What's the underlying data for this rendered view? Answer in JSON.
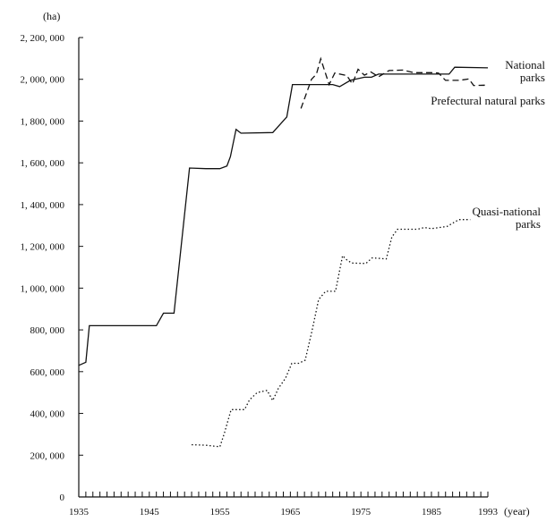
{
  "chart_data": {
    "type": "line",
    "title": "",
    "y_unit_label": "(ha)",
    "x_unit_label": "(year)",
    "xlim": [
      1935,
      1993
    ],
    "ylim": [
      0,
      2200000
    ],
    "grid": false,
    "legend": "inline labels near line ends",
    "x_tick_labels": [
      {
        "value": 1935,
        "label": "1935"
      },
      {
        "value": 1945,
        "label": "1945"
      },
      {
        "value": 1955,
        "label": "1955"
      },
      {
        "value": 1965,
        "label": "1965"
      },
      {
        "value": 1975,
        "label": "1975"
      },
      {
        "value": 1985,
        "label": "1985"
      },
      {
        "value": 1993,
        "label": "1993"
      }
    ],
    "y_tick_labels": [
      {
        "value": 0,
        "label": "0"
      },
      {
        "value": 200000,
        "label": "200, 000"
      },
      {
        "value": 400000,
        "label": "400, 000"
      },
      {
        "value": 600000,
        "label": "600, 000"
      },
      {
        "value": 800000,
        "label": "800, 000"
      },
      {
        "value": 1000000,
        "label": "1, 000, 000"
      },
      {
        "value": 1200000,
        "label": "1, 200, 000"
      },
      {
        "value": 1400000,
        "label": "1, 400, 000"
      },
      {
        "value": 1600000,
        "label": "1, 600, 000"
      },
      {
        "value": 1800000,
        "label": "1, 800, 000"
      },
      {
        "value": 2000000,
        "label": "2, 000, 000"
      },
      {
        "value": 2200000,
        "label": "2, 200, 000"
      }
    ],
    "series": [
      {
        "name_lines": [
          "National",
          "parks"
        ],
        "style": "solid",
        "color": "#111111",
        "points": [
          [
            1935,
            630000
          ],
          [
            1936,
            645000
          ],
          [
            1936.5,
            820000
          ],
          [
            1946,
            820000
          ],
          [
            1947,
            880000
          ],
          [
            1948.5,
            880000
          ],
          [
            1950.7,
            1575000
          ],
          [
            1953,
            1572000
          ],
          [
            1955,
            1572000
          ],
          [
            1956,
            1585000
          ],
          [
            1956.5,
            1630000
          ],
          [
            1957.3,
            1760000
          ],
          [
            1958,
            1742000
          ],
          [
            1962.5,
            1745000
          ],
          [
            1964.5,
            1820000
          ],
          [
            1965.3,
            1975000
          ],
          [
            1971,
            1975000
          ],
          [
            1972,
            1965000
          ],
          [
            1973.5,
            1995000
          ],
          [
            1975.5,
            2010000
          ],
          [
            1976.5,
            2010000
          ],
          [
            1977.5,
            2025000
          ],
          [
            1986,
            2025000
          ],
          [
            1987.5,
            2025000
          ],
          [
            1988.3,
            2058000
          ],
          [
            1993,
            2055000
          ]
        ]
      },
      {
        "name_lines": [
          "Prefectural natural parks"
        ],
        "style": "dashed",
        "color": "#111111",
        "points": [
          [
            1966.5,
            1860000
          ],
          [
            1968,
            2000000
          ],
          [
            1968.7,
            2025000
          ],
          [
            1969.3,
            2098000
          ],
          [
            1970.5,
            1975000
          ],
          [
            1971.3,
            2030000
          ],
          [
            1973,
            2018000
          ],
          [
            1973.8,
            1978000
          ],
          [
            1974.6,
            2048000
          ],
          [
            1975.5,
            2020000
          ],
          [
            1976.4,
            2035000
          ],
          [
            1977.5,
            2012000
          ],
          [
            1979,
            2042000
          ],
          [
            1981,
            2044000
          ],
          [
            1982.5,
            2032000
          ],
          [
            1985,
            2032000
          ],
          [
            1986,
            2030000
          ],
          [
            1987,
            1995000
          ],
          [
            1989,
            1995000
          ],
          [
            1990.3,
            2002000
          ],
          [
            1991,
            1970000
          ],
          [
            1992.5,
            1972000
          ],
          [
            1993,
            1965000
          ]
        ]
      },
      {
        "name_lines": [
          "Quasi-national",
          "parks"
        ],
        "style": "dotted",
        "color": "#111111",
        "points": [
          [
            1951,
            250000
          ],
          [
            1953,
            248000
          ],
          [
            1955,
            240000
          ],
          [
            1955.6,
            300000
          ],
          [
            1956.6,
            418000
          ],
          [
            1958.5,
            418000
          ],
          [
            1959.2,
            465000
          ],
          [
            1960.3,
            500000
          ],
          [
            1961.7,
            510000
          ],
          [
            1962.5,
            462000
          ],
          [
            1963.3,
            520000
          ],
          [
            1964.3,
            568000
          ],
          [
            1965.2,
            640000
          ],
          [
            1966.2,
            640000
          ],
          [
            1967.1,
            655000
          ],
          [
            1968.1,
            800000
          ],
          [
            1969,
            945000
          ],
          [
            1970,
            985000
          ],
          [
            1971.4,
            985000
          ],
          [
            1972.4,
            1155000
          ],
          [
            1973,
            1135000
          ],
          [
            1973.7,
            1120000
          ],
          [
            1975.7,
            1118000
          ],
          [
            1976.6,
            1145000
          ],
          [
            1978.6,
            1140000
          ],
          [
            1979.4,
            1245000
          ],
          [
            1980.2,
            1282000
          ],
          [
            1983,
            1282000
          ],
          [
            1984,
            1290000
          ],
          [
            1985,
            1285000
          ],
          [
            1987.2,
            1295000
          ],
          [
            1988.2,
            1315000
          ],
          [
            1988.9,
            1328000
          ],
          [
            1990.5,
            1328000
          ]
        ]
      }
    ]
  }
}
